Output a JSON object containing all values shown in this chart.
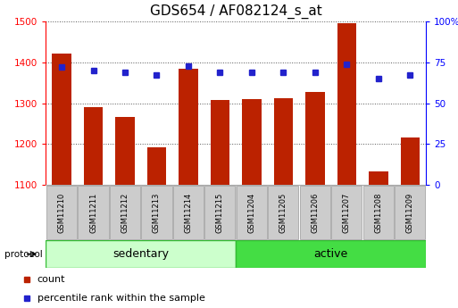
{
  "title": "GDS654 / AF082124_s_at",
  "samples": [
    "GSM11210",
    "GSM11211",
    "GSM11212",
    "GSM11213",
    "GSM11214",
    "GSM11215",
    "GSM11204",
    "GSM11205",
    "GSM11206",
    "GSM11207",
    "GSM11208",
    "GSM11209"
  ],
  "count_values": [
    1422,
    1290,
    1267,
    1192,
    1385,
    1308,
    1310,
    1313,
    1328,
    1497,
    1132,
    1215
  ],
  "percentile_values": [
    72,
    70,
    69,
    67,
    73,
    69,
    69,
    69,
    69,
    74,
    65,
    67
  ],
  "ylim_left": [
    1100,
    1500
  ],
  "ylim_right": [
    0,
    100
  ],
  "yticks_left": [
    1100,
    1200,
    1300,
    1400,
    1500
  ],
  "yticks_right": [
    0,
    25,
    50,
    75,
    100
  ],
  "bar_color": "#bb2200",
  "dot_color": "#2222cc",
  "sedentary_color": "#ccffcc",
  "active_color": "#44dd44",
  "bg_color": "#ffffff",
  "grid_color": "#555555",
  "box_color": "#cccccc",
  "box_edge_color": "#999999",
  "title_fontsize": 11,
  "tick_fontsize": 7.5,
  "sample_fontsize": 6,
  "proto_fontsize": 9,
  "legend_fontsize": 8
}
